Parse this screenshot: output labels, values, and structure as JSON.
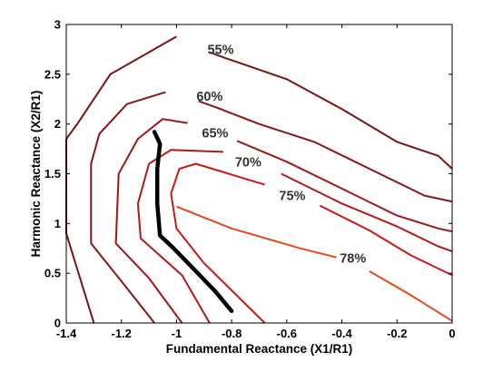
{
  "chart_data": {
    "type": "contour",
    "xlabel": "Fundamental Reactance (X1/R1)",
    "ylabel": "Harmonic Reactance (X2/R1)",
    "xlim": [
      -1.4,
      0
    ],
    "ylim": [
      0,
      3
    ],
    "x_ticks": [
      "-1.4",
      "-1.2",
      "-1",
      "-0.8",
      "-0.6",
      "-0.4",
      "-0.2",
      "0"
    ],
    "y_ticks": [
      "0",
      "0.5",
      "1",
      "1.5",
      "2",
      "2.5",
      "3"
    ],
    "grid": false,
    "levels": [
      {
        "label": "55%",
        "color": "#7a1212",
        "points": [
          [
            -1.0,
            2.88
          ],
          [
            -1.24,
            2.5
          ],
          [
            -1.36,
            2.0
          ],
          [
            -1.4,
            1.85
          ],
          [
            -1.4,
            0.9
          ],
          [
            -1.3,
            0.0
          ]
        ],
        "points_right": [
          [
            -0.88,
            2.72
          ],
          [
            -0.82,
            2.66
          ],
          [
            -0.6,
            2.45
          ],
          [
            -0.4,
            2.15
          ],
          [
            -0.2,
            1.82
          ],
          [
            -0.05,
            1.68
          ],
          [
            0.0,
            1.55
          ]
        ],
        "label_at": [
          -0.84,
          2.75
        ]
      },
      {
        "label": "60%",
        "color": "#8c1414",
        "points": [
          [
            -1.04,
            2.32
          ],
          [
            -1.18,
            2.2
          ],
          [
            -1.28,
            1.9
          ],
          [
            -1.31,
            1.6
          ],
          [
            -1.31,
            0.8
          ],
          [
            -1.2,
            0.42
          ],
          [
            -1.08,
            0.0
          ]
        ],
        "points_right": [
          [
            -0.92,
            2.23
          ],
          [
            -0.85,
            2.16
          ],
          [
            -0.7,
            2.0
          ],
          [
            -0.5,
            1.82
          ],
          [
            -0.3,
            1.55
          ],
          [
            -0.1,
            1.28
          ],
          [
            0.0,
            1.22
          ]
        ],
        "label_at": [
          -0.88,
          2.28
        ]
      },
      {
        "label": "65%",
        "color": "#a11616",
        "points": [
          [
            -0.96,
            2.01
          ],
          [
            -1.05,
            2.05
          ],
          [
            -1.14,
            1.85
          ],
          [
            -1.21,
            1.5
          ],
          [
            -1.22,
            0.8
          ],
          [
            -1.1,
            0.45
          ],
          [
            -0.98,
            0.0
          ]
        ],
        "points_right": [
          [
            -0.78,
            1.83
          ],
          [
            -0.6,
            1.62
          ],
          [
            -0.4,
            1.35
          ],
          [
            -0.2,
            1.08
          ],
          [
            -0.05,
            0.95
          ],
          [
            0.0,
            0.92
          ]
        ],
        "label_at": [
          -0.86,
          1.91
        ]
      },
      {
        "label": "70%",
        "color": "#b51818",
        "points": [
          [
            -0.83,
            1.72
          ],
          [
            -1.02,
            1.74
          ],
          [
            -1.1,
            1.6
          ],
          [
            -1.14,
            1.2
          ],
          [
            -1.13,
            0.85
          ],
          [
            -0.98,
            0.48
          ],
          [
            -0.88,
            0.0
          ]
        ],
        "points_right": [
          [
            -0.62,
            1.5
          ],
          [
            -0.4,
            1.2
          ],
          [
            -0.2,
            0.97
          ],
          [
            -0.05,
            0.77
          ],
          [
            0.0,
            0.72
          ]
        ],
        "label_at": [
          -0.74,
          1.62
        ]
      },
      {
        "label": "75%",
        "color": "#c81a12",
        "points": [
          [
            -0.68,
            1.39
          ],
          [
            -0.93,
            1.6
          ],
          [
            -0.99,
            1.55
          ],
          [
            -1.02,
            1.3
          ],
          [
            -1.0,
            0.95
          ],
          [
            -0.9,
            0.6
          ],
          [
            -0.68,
            0.0
          ]
        ],
        "points_right": [
          [
            -0.48,
            1.18
          ],
          [
            -0.3,
            0.93
          ],
          [
            -0.15,
            0.68
          ],
          [
            0.0,
            0.48
          ]
        ],
        "label_at": [
          -0.58,
          1.28
        ]
      },
      {
        "label": "78%",
        "color": "#e8491a",
        "points": [
          [
            -1.0,
            1.17
          ],
          [
            -0.8,
            0.95
          ],
          [
            -0.55,
            0.75
          ],
          [
            -0.42,
            0.66
          ]
        ],
        "points_right": [
          [
            -0.3,
            0.52
          ],
          [
            -0.15,
            0.28
          ],
          [
            0.0,
            0.02
          ]
        ],
        "label_at": [
          -0.36,
          0.65
        ]
      }
    ],
    "thick_curve": {
      "color": "#000000",
      "points": [
        [
          -1.08,
          1.92
        ],
        [
          -1.06,
          1.8
        ],
        [
          -1.07,
          1.55
        ],
        [
          -1.07,
          1.2
        ],
        [
          -1.06,
          0.88
        ],
        [
          -1.01,
          0.75
        ],
        [
          -0.94,
          0.55
        ],
        [
          -0.86,
          0.32
        ],
        [
          -0.8,
          0.12
        ]
      ]
    }
  }
}
